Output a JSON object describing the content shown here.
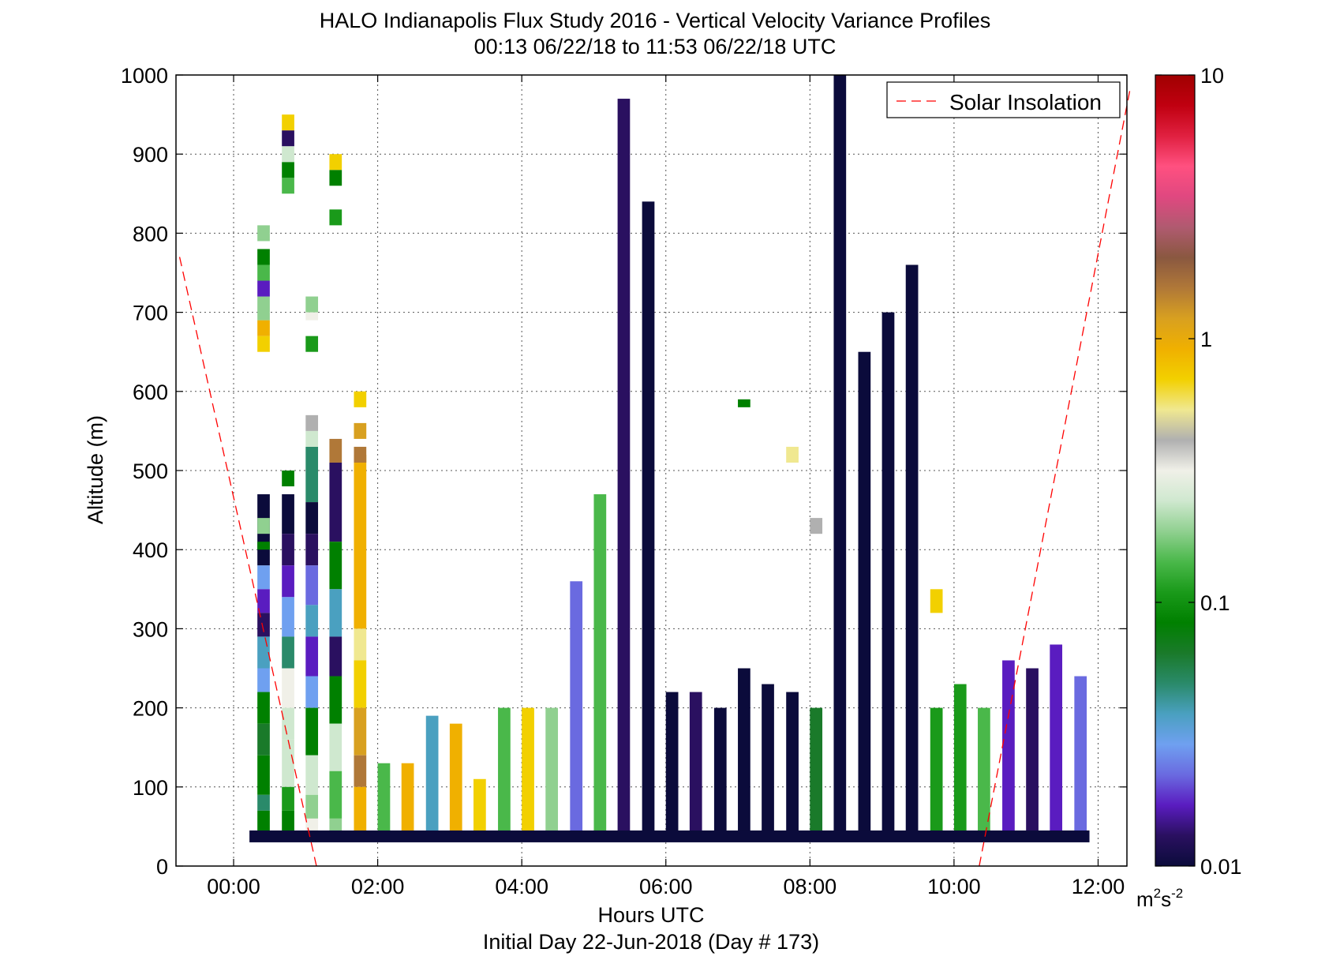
{
  "chart_data": {
    "type": "heatmap",
    "title": "HALO Indianapolis Flux Study 2016 - Vertical Velocity Variance Profiles",
    "subtitle": "00:13 06/22/18 to 11:53 06/22/18  UTC",
    "xlabel": "Hours UTC",
    "xlabel2": "Initial Day 22-Jun-2018 (Day # 173)",
    "ylabel": "Altitude (m)",
    "xlim": [
      -0.8,
      12.4
    ],
    "ylim": [
      0,
      1000
    ],
    "x_ticks": [
      0,
      2,
      4,
      6,
      8,
      10,
      12
    ],
    "x_tick_labels": [
      "00:00",
      "02:00",
      "04:00",
      "06:00",
      "08:00",
      "10:00",
      "12:00"
    ],
    "y_ticks": [
      0,
      100,
      200,
      300,
      400,
      500,
      600,
      700,
      800,
      900,
      1000
    ],
    "y_tick_labels": [
      "0",
      "100",
      "200",
      "300",
      "400",
      "500",
      "600",
      "700",
      "800",
      "900",
      "1000"
    ],
    "grid": true,
    "colorbar": {
      "scale": "log",
      "min": 0.01,
      "max": 10,
      "tick_labels": [
        "10",
        "1",
        "0.1",
        "0.01"
      ],
      "tick_values": [
        10,
        1,
        0.1,
        0.01
      ],
      "unit_label": "m",
      "unit_sup1": "2",
      "unit_mid": "s",
      "unit_sup2": "-2",
      "colors": [
        "#0b0b3b",
        "#2a1060",
        "#5a1cc0",
        "#6a6ae0",
        "#6fa0f0",
        "#4aa0c0",
        "#2a8a6a",
        "#1a7a2a",
        "#008000",
        "#1a9a1a",
        "#4ab84a",
        "#90d090",
        "#cfe8cf",
        "#f0f0e8",
        "#b0b0b0",
        "#f0e890",
        "#f2d000",
        "#f0b000",
        "#d8a020",
        "#b07838",
        "#8a5840",
        "#b05a70",
        "#e04880",
        "#ff5080",
        "#e02040",
        "#c00010",
        "#a00000"
      ]
    },
    "legend": {
      "label": "Solar Insolation",
      "placement": "top-right",
      "color": "#ff0000"
    },
    "solar_insolation_lines": [
      {
        "x": [
          -0.75,
          1.15
        ],
        "y": [
          770,
          0
        ]
      },
      {
        "x": [
          10.35,
          12.45
        ],
        "y": [
          0,
          985
        ]
      }
    ],
    "time_step_hours": 0.1667,
    "altitude_step_m": 15,
    "bottom_row": {
      "x_start": 0.22,
      "x_end": 11.88,
      "y": 30,
      "color": "#0b0b3b"
    },
    "profiles": [
      {
        "x": 0.33,
        "ytop": 790,
        "cells": [
          [
            380,
            470,
            "#0b0b3b"
          ],
          [
            350,
            380,
            "#6fa0f0"
          ],
          [
            320,
            350,
            "#5a1cc0"
          ],
          [
            290,
            320,
            "#2a1060"
          ],
          [
            250,
            290,
            "#4aa0c0"
          ],
          [
            220,
            250,
            "#6fa0f0"
          ],
          [
            180,
            220,
            "#008000"
          ],
          [
            140,
            180,
            "#1a7a2a"
          ],
          [
            90,
            140,
            "#008000"
          ],
          [
            70,
            90,
            "#2a8a6a"
          ],
          [
            40,
            70,
            "#008000"
          ],
          [
            400,
            410,
            "#008000"
          ],
          [
            420,
            440,
            "#90d090"
          ],
          [
            650,
            670,
            "#f2d000"
          ],
          [
            670,
            690,
            "#f0b000"
          ],
          [
            690,
            720,
            "#90d090"
          ],
          [
            720,
            740,
            "#5a1cc0"
          ],
          [
            740,
            760,
            "#4ab84a"
          ],
          [
            760,
            780,
            "#008000"
          ],
          [
            790,
            810,
            "#90d090"
          ]
        ]
      },
      {
        "x": 0.67,
        "ytop": 940,
        "cells": [
          [
            480,
            500,
            "#008000"
          ],
          [
            420,
            470,
            "#0b0b3b"
          ],
          [
            380,
            420,
            "#2a1060"
          ],
          [
            340,
            380,
            "#5a1cc0"
          ],
          [
            290,
            340,
            "#6fa0f0"
          ],
          [
            250,
            290,
            "#2a8a6a"
          ],
          [
            200,
            250,
            "#f0f0e8"
          ],
          [
            160,
            200,
            "#cfe8cf"
          ],
          [
            100,
            160,
            "#cfe8cf"
          ],
          [
            70,
            100,
            "#1a9a1a"
          ],
          [
            40,
            70,
            "#008000"
          ],
          [
            850,
            870,
            "#4ab84a"
          ],
          [
            870,
            890,
            "#008000"
          ],
          [
            890,
            910,
            "#cfe8cf"
          ],
          [
            910,
            930,
            "#2a1060"
          ],
          [
            930,
            950,
            "#f2d000"
          ]
        ]
      },
      {
        "x": 1.0,
        "ytop": 860,
        "cells": [
          [
            460,
            530,
            "#2a8a6a"
          ],
          [
            420,
            460,
            "#0b0b3b"
          ],
          [
            380,
            420,
            "#2a1060"
          ],
          [
            330,
            380,
            "#6a6ae0"
          ],
          [
            290,
            330,
            "#4aa0c0"
          ],
          [
            240,
            290,
            "#5a1cc0"
          ],
          [
            200,
            240,
            "#6fa0f0"
          ],
          [
            140,
            200,
            "#008000"
          ],
          [
            90,
            140,
            "#cfe8cf"
          ],
          [
            60,
            90,
            "#90d090"
          ],
          [
            40,
            60,
            "#f0f0e8"
          ],
          [
            530,
            550,
            "#cfe8cf"
          ],
          [
            550,
            570,
            "#b0b0b0"
          ],
          [
            650,
            670,
            "#1a9a1a"
          ],
          [
            690,
            700,
            "#f0f0e8"
          ],
          [
            700,
            720,
            "#90d090"
          ]
        ]
      },
      {
        "x": 1.33,
        "ytop": 880,
        "cells": [
          [
            410,
            510,
            "#2a1060"
          ],
          [
            350,
            410,
            "#008000"
          ],
          [
            290,
            350,
            "#4aa0c0"
          ],
          [
            240,
            290,
            "#2a1060"
          ],
          [
            180,
            240,
            "#008000"
          ],
          [
            120,
            180,
            "#cfe8cf"
          ],
          [
            60,
            120,
            "#4ab84a"
          ],
          [
            40,
            60,
            "#90d090"
          ],
          [
            510,
            540,
            "#b07838"
          ],
          [
            810,
            830,
            "#1a9a1a"
          ],
          [
            860,
            880,
            "#008000"
          ],
          [
            880,
            900,
            "#f2d000"
          ]
        ]
      },
      {
        "x": 1.67,
        "ytop": 610,
        "cells": [
          [
            300,
            520,
            "#f0b000"
          ],
          [
            260,
            300,
            "#f0e890"
          ],
          [
            200,
            260,
            "#f2d000"
          ],
          [
            140,
            200,
            "#d8a020"
          ],
          [
            100,
            140,
            "#b07838"
          ],
          [
            40,
            100,
            "#f0b000"
          ],
          [
            580,
            600,
            "#f2d000"
          ],
          [
            540,
            560,
            "#d8a020"
          ],
          [
            510,
            530,
            "#b07838"
          ]
        ]
      },
      {
        "x": 2.0,
        "ytop": 130,
        "cells": [
          [
            40,
            130,
            "#4ab84a"
          ]
        ]
      },
      {
        "x": 2.33,
        "ytop": 130,
        "cells": [
          [
            40,
            130,
            "#f0b000"
          ]
        ]
      },
      {
        "x": 2.67,
        "ytop": 190,
        "cells": [
          [
            40,
            190,
            "#4aa0c0"
          ]
        ]
      },
      {
        "x": 3.0,
        "ytop": 180,
        "cells": [
          [
            40,
            180,
            "#f0b000"
          ]
        ]
      },
      {
        "x": 3.33,
        "ytop": 110,
        "cells": [
          [
            40,
            110,
            "#f2d000"
          ]
        ]
      },
      {
        "x": 3.67,
        "ytop": 200,
        "cells": [
          [
            40,
            200,
            "#4ab84a"
          ]
        ]
      },
      {
        "x": 4.0,
        "ytop": 200,
        "cells": [
          [
            40,
            200,
            "#f2d000"
          ]
        ]
      },
      {
        "x": 4.33,
        "ytop": 200,
        "cells": [
          [
            40,
            200,
            "#90d090"
          ]
        ]
      },
      {
        "x": 4.67,
        "ytop": 360,
        "cells": [
          [
            40,
            360,
            "#6a6ae0"
          ]
        ]
      },
      {
        "x": 5.0,
        "ytop": 470,
        "cells": [
          [
            40,
            470,
            "#4ab84a"
          ]
        ]
      },
      {
        "x": 5.33,
        "ytop": 970,
        "cells": [
          [
            40,
            970,
            "#2a1060"
          ]
        ]
      },
      {
        "x": 5.67,
        "ytop": 840,
        "cells": [
          [
            40,
            840,
            "#0b0b3b"
          ]
        ]
      },
      {
        "x": 6.0,
        "ytop": 220,
        "cells": [
          [
            40,
            220,
            "#0b0b3b"
          ]
        ]
      },
      {
        "x": 6.33,
        "ytop": 220,
        "cells": [
          [
            40,
            220,
            "#2a1060"
          ]
        ]
      },
      {
        "x": 6.67,
        "ytop": 200,
        "cells": [
          [
            40,
            200,
            "#0b0b3b"
          ]
        ]
      },
      {
        "x": 7.0,
        "ytop": 590,
        "cells": [
          [
            40,
            250,
            "#0b0b3b"
          ],
          [
            580,
            590,
            "#008000"
          ]
        ]
      },
      {
        "x": 7.33,
        "ytop": 230,
        "cells": [
          [
            40,
            230,
            "#0b0b3b"
          ]
        ]
      },
      {
        "x": 7.67,
        "ytop": 530,
        "cells": [
          [
            40,
            220,
            "#0b0b3b"
          ],
          [
            510,
            530,
            "#f0e890"
          ]
        ]
      },
      {
        "x": 8.0,
        "ytop": 440,
        "cells": [
          [
            40,
            200,
            "#1a7a2a"
          ],
          [
            420,
            440,
            "#b0b0b0"
          ]
        ]
      },
      {
        "x": 8.33,
        "ytop": 1000,
        "cells": [
          [
            40,
            1000,
            "#0b0b3b"
          ]
        ]
      },
      {
        "x": 8.67,
        "ytop": 650,
        "cells": [
          [
            40,
            650,
            "#0b0b3b"
          ]
        ]
      },
      {
        "x": 9.0,
        "ytop": 700,
        "cells": [
          [
            40,
            700,
            "#0b0b3b"
          ]
        ]
      },
      {
        "x": 9.33,
        "ytop": 760,
        "cells": [
          [
            40,
            760,
            "#0b0b3b"
          ]
        ]
      },
      {
        "x": 9.67,
        "ytop": 350,
        "cells": [
          [
            40,
            200,
            "#1a9a1a"
          ],
          [
            320,
            350,
            "#f2d000"
          ]
        ]
      },
      {
        "x": 10.0,
        "ytop": 230,
        "cells": [
          [
            40,
            230,
            "#1a9a1a"
          ]
        ]
      },
      {
        "x": 10.33,
        "ytop": 200,
        "cells": [
          [
            40,
            200,
            "#4ab84a"
          ]
        ]
      },
      {
        "x": 10.67,
        "ytop": 260,
        "cells": [
          [
            40,
            260,
            "#5a1cc0"
          ]
        ]
      },
      {
        "x": 11.0,
        "ytop": 250,
        "cells": [
          [
            40,
            250,
            "#2a1060"
          ]
        ]
      },
      {
        "x": 11.33,
        "ytop": 280,
        "cells": [
          [
            40,
            280,
            "#5a1cc0"
          ]
        ]
      },
      {
        "x": 11.67,
        "ytop": 240,
        "cells": [
          [
            40,
            240,
            "#6a6ae0"
          ]
        ]
      }
    ]
  }
}
